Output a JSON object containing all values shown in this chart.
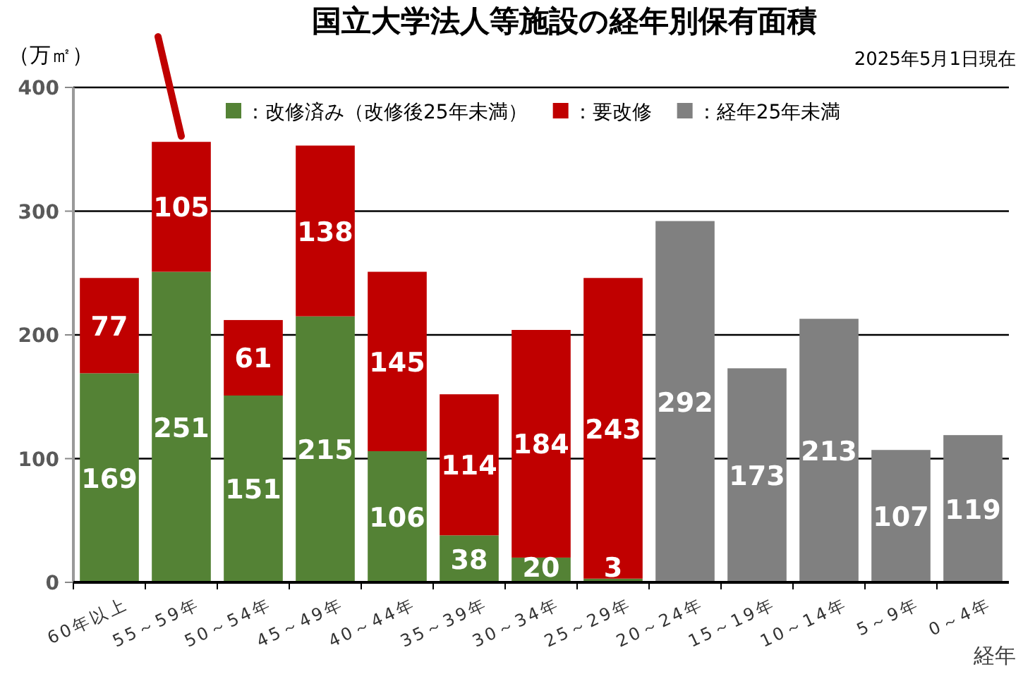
{
  "chart_data": {
    "type": "bar",
    "title": "国立大学法人等施設の経年別保有面積",
    "ylabel": "（万㎡）",
    "xlabel": "経年",
    "annotations": [
      "2025年5月1日現在"
    ],
    "categories": [
      "60年以上",
      "55～59年",
      "50～54年",
      "45～49年",
      "40～44年",
      "35～39年",
      "30～34年",
      "25～29年",
      "20～24年",
      "15～19年",
      "10～14年",
      "5～9年",
      "0～4年"
    ],
    "series": [
      {
        "name": "：改修済み（改修後25年未満）",
        "color": "#548235",
        "values": [
          169,
          251,
          151,
          215,
          106,
          38,
          20,
          3,
          null,
          null,
          null,
          null,
          null
        ]
      },
      {
        "name": "：要改修",
        "color": "#c00000",
        "values": [
          77,
          105,
          61,
          138,
          145,
          114,
          184,
          243,
          null,
          null,
          null,
          null,
          null
        ]
      },
      {
        "name": "：経年25年未満",
        "color": "#808080",
        "values": [
          null,
          null,
          null,
          null,
          null,
          null,
          null,
          null,
          292,
          173,
          213,
          107,
          119
        ]
      }
    ],
    "stacked": true,
    "data_labels": true,
    "ylim": [
      0,
      400
    ],
    "yticks": [
      0,
      100,
      200,
      300,
      400
    ],
    "grid": "y",
    "legend": "top"
  }
}
